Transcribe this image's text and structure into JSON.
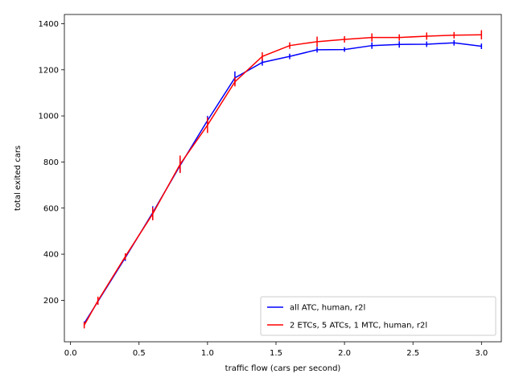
{
  "chart_data": {
    "type": "line",
    "title": "",
    "xlabel": "traffic flow (cars per second)",
    "ylabel": "total exited cars",
    "xlim": [
      -0.045,
      3.145
    ],
    "ylim": [
      20,
      1440
    ],
    "xticks": [
      0.0,
      0.5,
      1.0,
      1.5,
      2.0,
      2.5,
      3.0
    ],
    "xtick_labels": [
      "0.0",
      "0.5",
      "1.0",
      "1.5",
      "2.0",
      "2.5",
      "3.0"
    ],
    "yticks": [
      200,
      400,
      600,
      800,
      1000,
      1200,
      1400
    ],
    "ytick_labels": [
      "200",
      "400",
      "600",
      "800",
      "1000",
      "1200",
      "1400"
    ],
    "grid": false,
    "legend_position": "lower-right",
    "series": [
      {
        "name": "all ATC, human, r2l",
        "color": "#0000ff",
        "x": [
          0.1,
          0.2,
          0.4,
          0.6,
          0.8,
          1.0,
          1.2,
          1.4,
          1.6,
          1.8,
          2.0,
          2.2,
          2.4,
          2.6,
          2.8,
          3.0
        ],
        "y": [
          100,
          195,
          385,
          580,
          785,
          980,
          1165,
          1232,
          1258,
          1287,
          1288,
          1305,
          1310,
          1311,
          1317,
          1302
        ],
        "err": [
          8,
          12,
          14,
          28,
          30,
          20,
          28,
          14,
          12,
          12,
          10,
          14,
          14,
          12,
          12,
          12
        ]
      },
      {
        "name": "2 ETCs, 5 ATCs, 1 MTC, human, r2l",
        "color": "#ff0000",
        "x": [
          0.1,
          0.2,
          0.4,
          0.6,
          0.8,
          1.0,
          1.2,
          1.4,
          1.6,
          1.8,
          2.0,
          2.2,
          2.4,
          2.6,
          2.8,
          3.0
        ],
        "y": [
          92,
          198,
          390,
          575,
          790,
          960,
          1148,
          1258,
          1305,
          1322,
          1332,
          1340,
          1340,
          1346,
          1350,
          1352
        ],
        "err": [
          14,
          18,
          14,
          28,
          38,
          34,
          20,
          18,
          14,
          22,
          14,
          18,
          14,
          16,
          14,
          20
        ]
      }
    ]
  }
}
